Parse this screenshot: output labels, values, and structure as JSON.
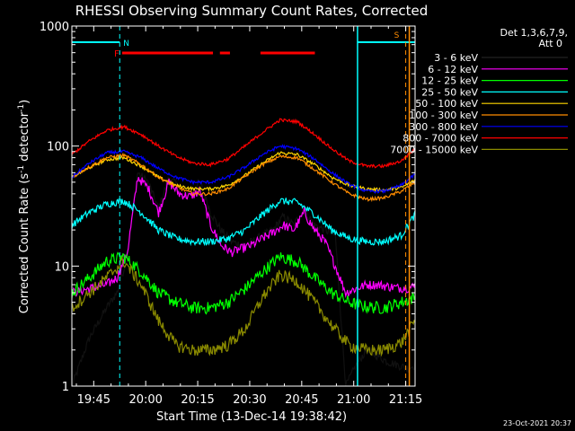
{
  "chart_data": {
    "type": "line",
    "title": "RHESSI Observing Summary Count Rates, Corrected",
    "xlabel": "Start Time (13-Dec-14 19:38:42)",
    "ylabel": "Corrected Count Rate (s⁻¹ detector⁻¹)",
    "ylabel_base": "Corrected Count Rate (s",
    "ylabel_mid": " detector",
    "ylabel_end": ")",
    "ylabel_exp": "-1",
    "y_scale": "log",
    "ylim": [
      1,
      1000
    ],
    "xlim_minutes": [
      0,
      99
    ],
    "x_tick_minutes": [
      6.3,
      21.3,
      36.3,
      51.3,
      66.3,
      81.3,
      96.3
    ],
    "x_tick_labels": [
      "19:45",
      "20:00",
      "20:15",
      "20:30",
      "20:45",
      "21:00",
      "21:15"
    ],
    "y_tick_values": [
      1,
      10,
      100,
      1000
    ],
    "y_tick_labels": [
      "1",
      "10",
      "100",
      "1000"
    ],
    "legend_title": [
      "Det 1,3,6,7,9,",
      "Att 0"
    ],
    "legend_position": "right",
    "timestamp": "23-Oct-2021 20:37",
    "flags": {
      "night_N": {
        "label": "N",
        "color": "#00ffff",
        "intervals": [
          [
            0,
            13.8
          ],
          [
            82.4,
            99
          ]
        ],
        "marker_minute": 13.8
      },
      "flare_F": {
        "label": "F",
        "color": "#ff0000",
        "intervals": [
          [
            14.5,
            40.7
          ],
          [
            42.7,
            45.6
          ],
          [
            54.4,
            70.1
          ]
        ]
      },
      "saa_S": {
        "label": "S",
        "color": "#ff8c00",
        "intervals": [
          [
            96.3,
            99
          ]
        ],
        "marker_minute": 96.3
      }
    },
    "series": [
      {
        "name": "3 - 6 keV",
        "color": "#000000",
        "x": [
          0,
          5,
          10,
          13,
          16,
          19,
          22,
          25,
          28,
          31,
          34,
          37,
          40,
          43,
          46,
          49,
          52,
          55,
          58,
          61,
          64,
          67,
          70,
          73,
          76,
          79,
          82,
          85,
          88,
          91,
          94,
          97,
          99
        ],
        "y": [
          1,
          2.5,
          4.5,
          6,
          12,
          60,
          50,
          30,
          55,
          45,
          42,
          50,
          28,
          20,
          16,
          15,
          16,
          18,
          20,
          26,
          22,
          30,
          22,
          20,
          18,
          1,
          1.5,
          2,
          1.8,
          1.6,
          1.5,
          1.4,
          1.5
        ]
      },
      {
        "name": "6 - 12 keV",
        "color": "#ff00ff",
        "x": [
          0,
          5,
          10,
          13,
          16,
          19,
          22,
          25,
          28,
          31,
          34,
          37,
          40,
          43,
          46,
          49,
          52,
          55,
          58,
          61,
          64,
          67,
          70,
          73,
          76,
          79,
          82,
          85,
          88,
          91,
          94,
          97,
          99
        ],
        "y": [
          6,
          6.5,
          7,
          8,
          13,
          55,
          45,
          28,
          50,
          40,
          38,
          42,
          22,
          15,
          13,
          14,
          15,
          17,
          19,
          22,
          20,
          28,
          20,
          16,
          10,
          6,
          6.5,
          7,
          7,
          6.8,
          6.6,
          6.6,
          6.8
        ]
      },
      {
        "name": "12 - 25 keV",
        "color": "#00ff00",
        "x": [
          0,
          5,
          10,
          15,
          20,
          25,
          30,
          35,
          40,
          45,
          50,
          55,
          60,
          65,
          70,
          75,
          80,
          85,
          90,
          95,
          99
        ],
        "y": [
          6,
          8,
          11,
          12,
          9,
          6,
          5,
          4.5,
          4.5,
          5,
          6.5,
          9,
          12,
          11,
          8,
          6,
          5,
          4.6,
          4.5,
          5,
          5.5
        ]
      },
      {
        "name": "25 - 50 keV",
        "color": "#00ffff",
        "x": [
          0,
          5,
          10,
          15,
          20,
          25,
          30,
          35,
          40,
          45,
          50,
          55,
          60,
          65,
          70,
          75,
          80,
          85,
          90,
          95,
          99
        ],
        "y": [
          22,
          28,
          33,
          35,
          28,
          20,
          17,
          16,
          16,
          17,
          20,
          27,
          35,
          34,
          27,
          20,
          17,
          16,
          16,
          18,
          27
        ]
      },
      {
        "name": "50 - 100 keV",
        "color": "#ffd700",
        "x": [
          0,
          5,
          10,
          15,
          20,
          25,
          30,
          35,
          40,
          45,
          50,
          55,
          60,
          65,
          70,
          75,
          80,
          85,
          90,
          95,
          99
        ],
        "y": [
          55,
          66,
          77,
          80,
          68,
          55,
          47,
          44,
          44,
          47,
          57,
          72,
          88,
          85,
          70,
          55,
          47,
          44,
          43,
          45,
          52
        ]
      },
      {
        "name": "100 - 300 keV",
        "color": "#ff8c00",
        "x": [
          0,
          5,
          10,
          15,
          20,
          25,
          30,
          35,
          40,
          45,
          50,
          55,
          60,
          65,
          70,
          75,
          80,
          85,
          90,
          95,
          99
        ],
        "y": [
          55,
          67,
          80,
          84,
          70,
          55,
          46,
          40,
          40,
          44,
          56,
          70,
          82,
          80,
          64,
          50,
          40,
          36,
          37,
          42,
          50
        ]
      },
      {
        "name": "300 - 800 keV",
        "color": "#0000ff",
        "x": [
          0,
          5,
          10,
          15,
          20,
          25,
          30,
          35,
          40,
          45,
          50,
          55,
          60,
          65,
          70,
          75,
          80,
          85,
          90,
          95,
          99
        ],
        "y": [
          55,
          72,
          88,
          90,
          80,
          65,
          55,
          50,
          50,
          55,
          67,
          85,
          100,
          95,
          78,
          60,
          48,
          42,
          42,
          47,
          58
        ]
      },
      {
        "name": "800 - 7000 keV",
        "color": "#ff0000",
        "x": [
          0,
          5,
          10,
          15,
          20,
          25,
          30,
          35,
          40,
          45,
          50,
          55,
          60,
          65,
          70,
          75,
          80,
          85,
          90,
          95,
          99
        ],
        "y": [
          85,
          110,
          135,
          145,
          125,
          100,
          82,
          72,
          70,
          78,
          100,
          130,
          165,
          160,
          125,
          95,
          75,
          68,
          68,
          75,
          95
        ]
      },
      {
        "name": "7000 - 15000 keV",
        "color": "#8b8b00",
        "x": [
          0,
          5,
          10,
          15,
          20,
          25,
          30,
          35,
          40,
          45,
          50,
          55,
          60,
          65,
          70,
          75,
          80,
          85,
          90,
          95,
          99
        ],
        "y": [
          4.5,
          6,
          8,
          11,
          7,
          3.5,
          2.2,
          2.0,
          2.0,
          2.2,
          3,
          5.5,
          8.5,
          7.5,
          5,
          3.2,
          2.2,
          2.0,
          2.0,
          2.3,
          3.5
        ]
      }
    ]
  }
}
